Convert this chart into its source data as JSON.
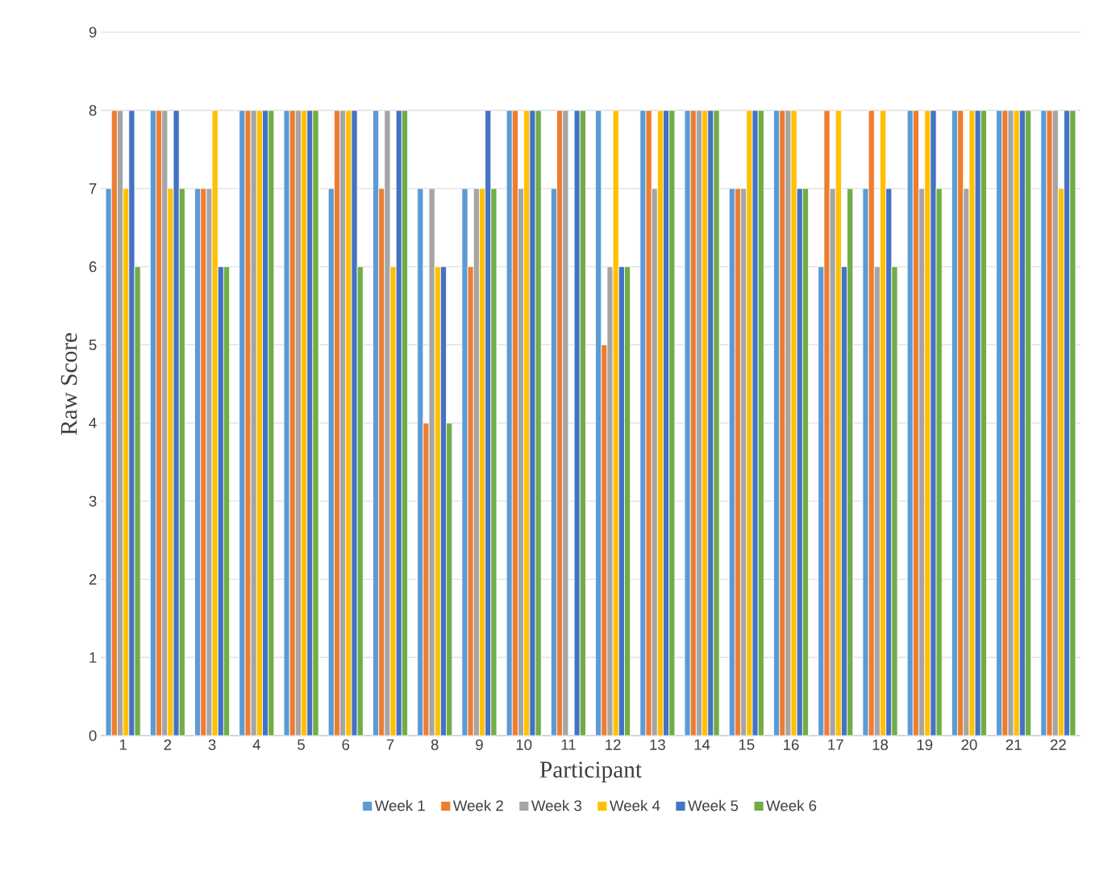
{
  "chart_data": {
    "type": "bar",
    "xlabel": "Participant",
    "ylabel": "Raw Score",
    "categories": [
      "1",
      "2",
      "3",
      "4",
      "5",
      "6",
      "7",
      "8",
      "9",
      "10",
      "11",
      "12",
      "13",
      "14",
      "15",
      "16",
      "17",
      "18",
      "19",
      "20",
      "21",
      "22"
    ],
    "series": [
      {
        "name": "Week 1",
        "color": "#5b9bd5",
        "values": [
          7,
          8,
          7,
          8,
          8,
          7,
          8,
          7,
          7,
          8,
          7,
          8,
          8,
          8,
          7,
          8,
          6,
          7,
          8,
          8,
          8,
          8
        ]
      },
      {
        "name": "Week 2",
        "color": "#ed7d31",
        "values": [
          8,
          8,
          7,
          8,
          8,
          8,
          7,
          4,
          6,
          8,
          8,
          5,
          8,
          8,
          7,
          8,
          8,
          8,
          8,
          8,
          8,
          8
        ]
      },
      {
        "name": "Week 3",
        "color": "#a5a5a5",
        "values": [
          8,
          8,
          7,
          8,
          8,
          8,
          8,
          7,
          7,
          7,
          8,
          6,
          7,
          8,
          7,
          8,
          7,
          6,
          7,
          7,
          8,
          8
        ]
      },
      {
        "name": "Week 4",
        "color": "#ffc000",
        "values": [
          7,
          7,
          8,
          8,
          8,
          8,
          6,
          6,
          7,
          8,
          null,
          8,
          8,
          8,
          8,
          8,
          8,
          8,
          8,
          8,
          8,
          7
        ]
      },
      {
        "name": "Week 5",
        "color": "#4472c4",
        "values": [
          8,
          8,
          6,
          8,
          8,
          8,
          8,
          6,
          8,
          8,
          8,
          6,
          8,
          8,
          8,
          7,
          6,
          7,
          8,
          8,
          8,
          8
        ]
      },
      {
        "name": "Week 6",
        "color": "#70ad47",
        "values": [
          6,
          7,
          6,
          8,
          8,
          6,
          8,
          4,
          7,
          8,
          8,
          6,
          8,
          8,
          8,
          7,
          7,
          6,
          7,
          8,
          8,
          8
        ]
      }
    ],
    "ylim": [
      0,
      9
    ],
    "yticks": [
      0,
      1,
      2,
      3,
      4,
      5,
      6,
      7,
      8,
      9
    ],
    "grid": "y",
    "legend": "bottom"
  }
}
